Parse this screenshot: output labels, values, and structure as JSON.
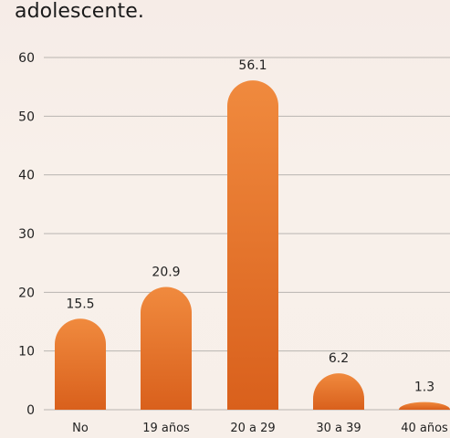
{
  "chart_data": {
    "type": "bar",
    "title": "adolescente.",
    "categories": [
      "No",
      "19 años",
      "20 a 29",
      "30 a 39",
      "40 años"
    ],
    "values": [
      15.5,
      20.9,
      56.1,
      6.2,
      1.3
    ],
    "ylim": [
      0,
      60
    ],
    "yticks": [
      0,
      10,
      20,
      30,
      40,
      50,
      60
    ],
    "grid": true,
    "colors": {
      "bar_top": "#f08a3e",
      "bar_bottom": "#d9601c",
      "grid": "#b9b4b1"
    }
  }
}
